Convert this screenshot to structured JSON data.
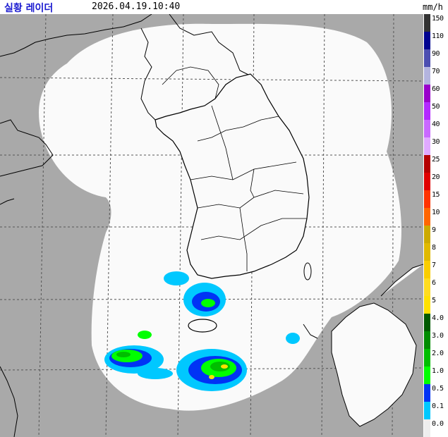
{
  "header": {
    "title": "실황 레이더",
    "timestamp": "2026.04.19.10:40",
    "unit": "mm/h"
  },
  "map": {
    "outside_coverage_color": "#a9a9a9",
    "coverage_color": "#fafafa",
    "grid_color": "#555555",
    "coastline_color": "#000000"
  },
  "legend": [
    {
      "label": "150",
      "color": "#333333"
    },
    {
      "label": "110",
      "color": "#000390"
    },
    {
      "label": "90",
      "color": "#4c4eb1"
    },
    {
      "label": "70",
      "color": "#b3b4de"
    },
    {
      "label": "60",
      "color": "#9900cb"
    },
    {
      "label": "50",
      "color": "#b329ff"
    },
    {
      "label": "40",
      "color": "#c969ff"
    },
    {
      "label": "30",
      "color": "#e0a9ff"
    },
    {
      "label": "25",
      "color": "#b40000"
    },
    {
      "label": "20",
      "color": "#e00000"
    },
    {
      "label": "15",
      "color": "#ff3300"
    },
    {
      "label": "10",
      "color": "#ff6600"
    },
    {
      "label": "9",
      "color": "#ccaa00"
    },
    {
      "label": "8",
      "color": "#e0b900"
    },
    {
      "label": "7",
      "color": "#f9cd00"
    },
    {
      "label": "6",
      "color": "#ffdc1f"
    },
    {
      "label": "5",
      "color": "#ffe100"
    },
    {
      "label": "4.0",
      "color": "#005a00"
    },
    {
      "label": "3.0",
      "color": "#008c00"
    },
    {
      "label": "2.0",
      "color": "#00be00"
    },
    {
      "label": "1.0",
      "color": "#00ff00"
    },
    {
      "label": "0.5",
      "color": "#0033f5"
    },
    {
      "label": "0.1",
      "color": "#00c8ff"
    },
    {
      "label": "0.0",
      "color": "#eeeeee"
    }
  ]
}
